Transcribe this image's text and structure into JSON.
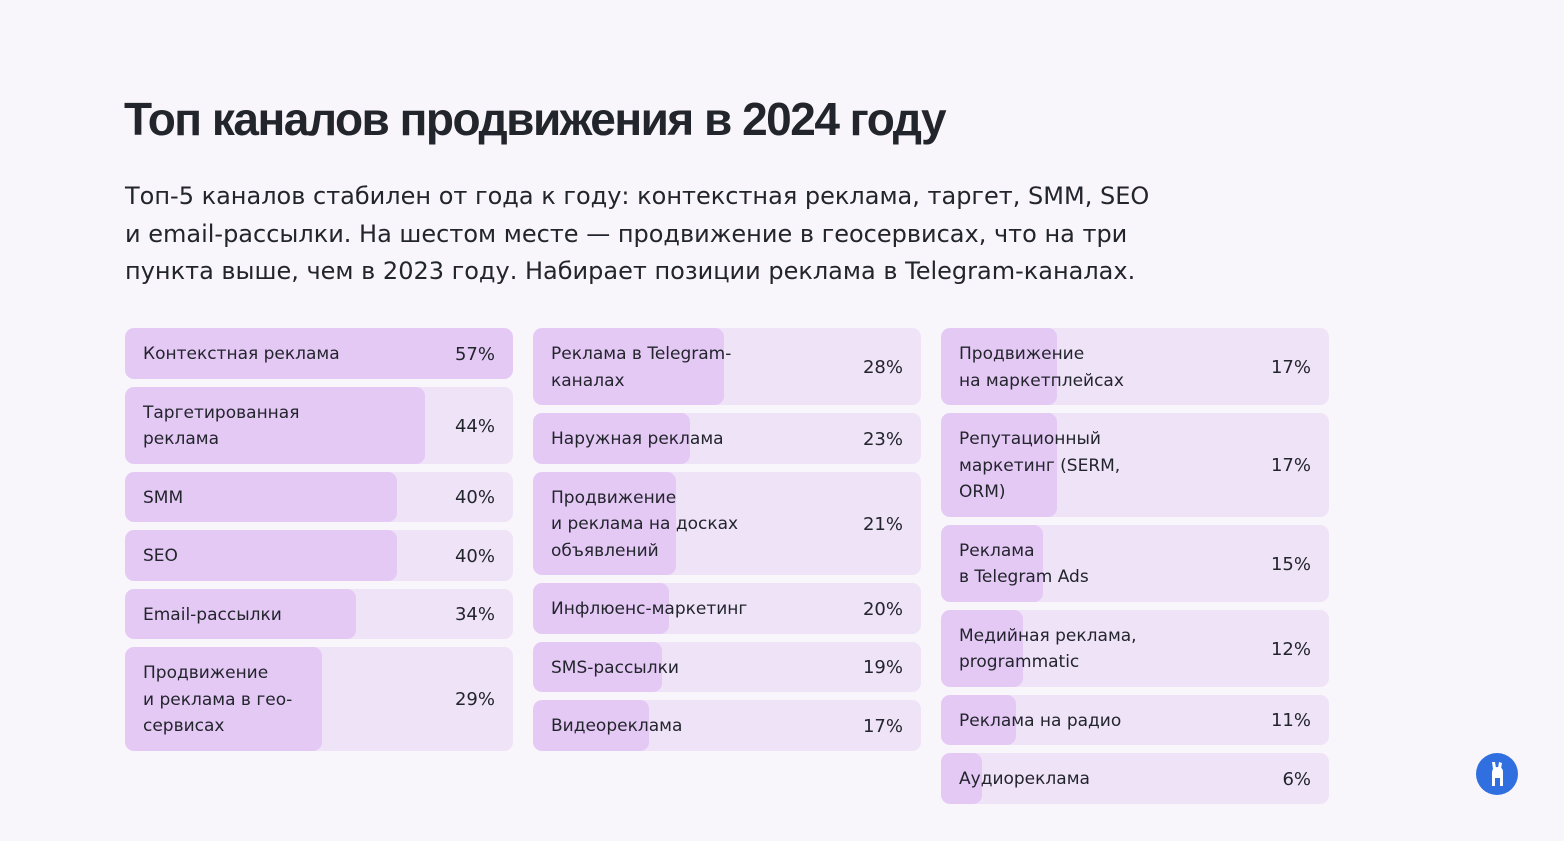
{
  "title": "Топ каналов продвижения в 2024 году",
  "subtitle": "Топ-5 каналов стабилен от года к году: контекстная реклама, таргет, SMM, SEO\nи email-рассылки. На шестом месте — продвижение в геосервисах, что на три\nпункта выше, чем в 2023 году. Набирает позиции реклама в Telegram-каналах.",
  "chart_data": [
    {
      "type": "bar",
      "orientation": "horizontal",
      "color": "#e4c9f5",
      "track_color": "#efe3f8",
      "xlim": [
        0,
        57
      ],
      "categories": [
        "Контекстная реклама",
        "Таргетированная\nреклама",
        "SMM",
        "SEO",
        "Email-рассылки",
        "Продвижение\nи реклама в гео-\nсервисах"
      ],
      "values": [
        57,
        44,
        40,
        40,
        34,
        29
      ],
      "value_labels": [
        "57%",
        "44%",
        "40%",
        "40%",
        "34%",
        "29%"
      ]
    },
    {
      "type": "bar",
      "orientation": "horizontal",
      "color": "#e4c9f5",
      "track_color": "#efe3f8",
      "xlim": [
        0,
        57
      ],
      "categories": [
        "Реклама в Telegram-\nканалах",
        "Наружная реклама",
        "Продвижение\nи реклама на досках\nобъявлений",
        "Инфлюенс-маркетинг",
        "SMS-рассылки",
        "Видеореклама"
      ],
      "values": [
        28,
        23,
        21,
        20,
        19,
        17
      ],
      "value_labels": [
        "28%",
        "23%",
        "21%",
        "20%",
        "19%",
        "17%"
      ]
    },
    {
      "type": "bar",
      "orientation": "horizontal",
      "color": "#e4c9f5",
      "track_color": "#efe3f8",
      "xlim": [
        0,
        57
      ],
      "categories": [
        "Продвижение\nна маркетплейсах",
        "Репутационный\nмаркетинг (SERM,\nORM)",
        "Реклама\nв Telegram Ads",
        "Медийная реклама,\nprogrammatic",
        "Реклама на радио",
        "Аудиореклама"
      ],
      "values": [
        17,
        17,
        15,
        12,
        11,
        6
      ],
      "value_labels": [
        "17%",
        "17%",
        "15%",
        "12%",
        "11%",
        "6%"
      ]
    }
  ]
}
